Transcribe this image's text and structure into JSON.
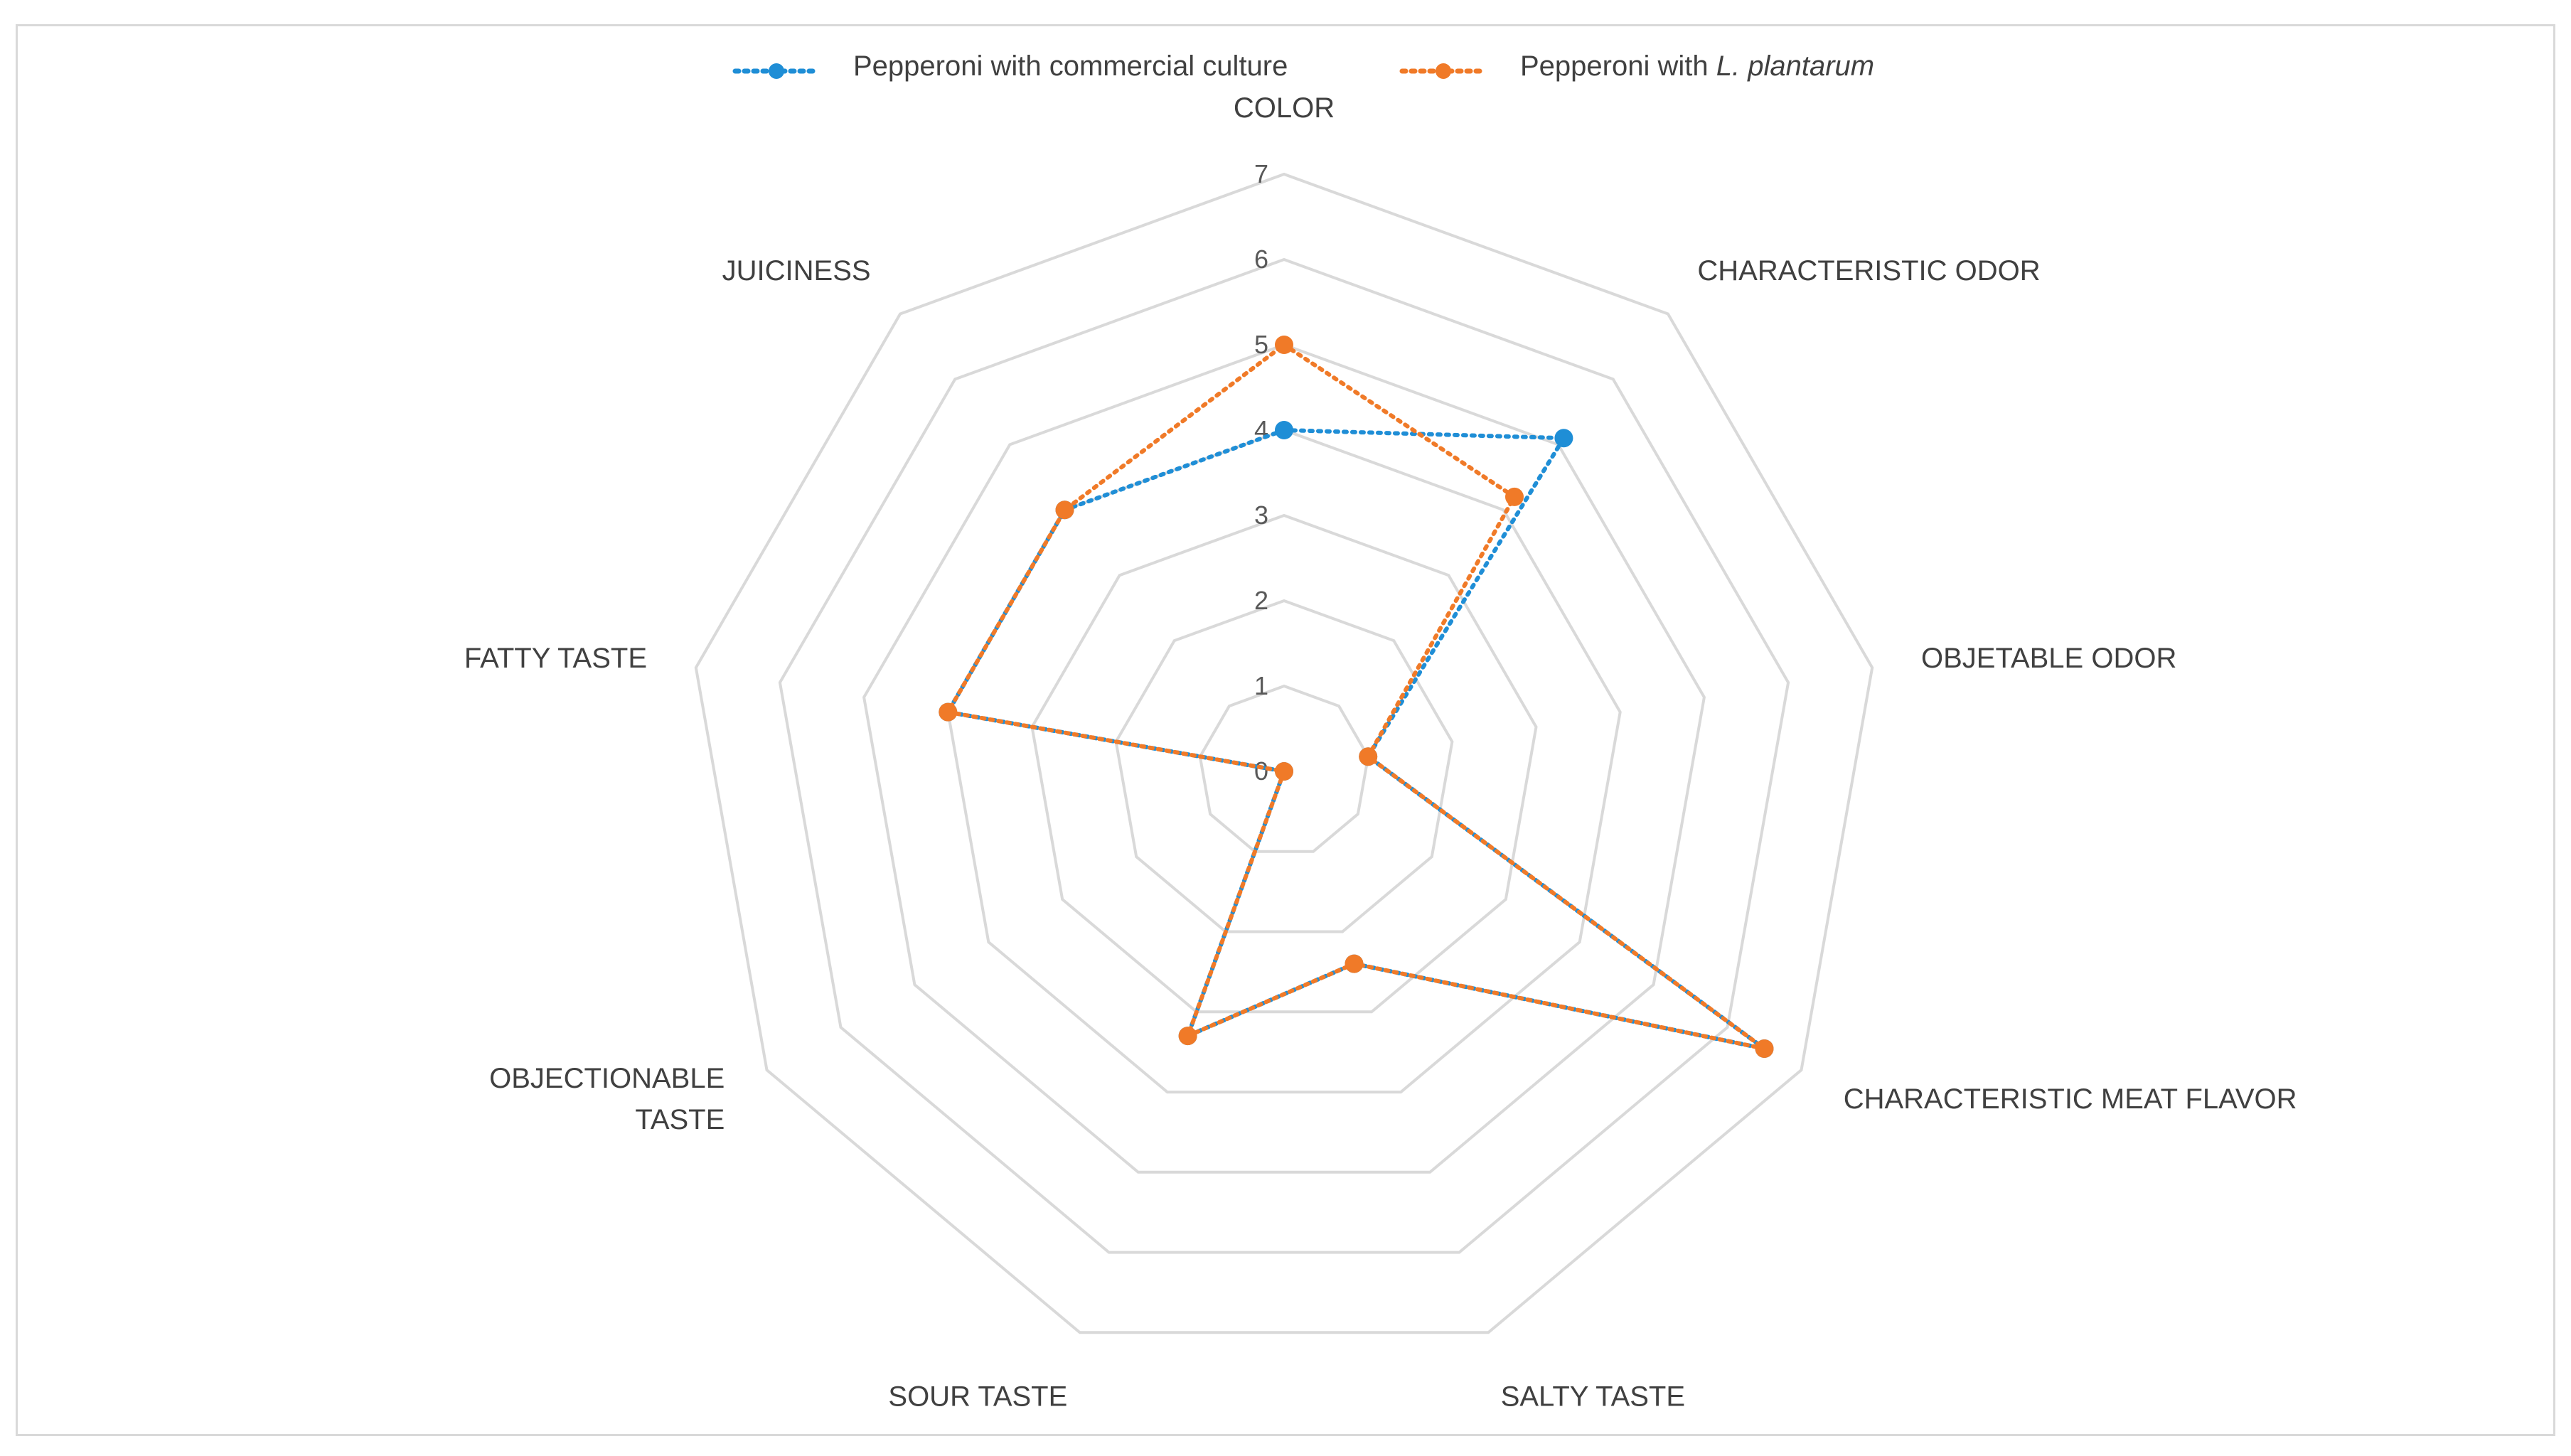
{
  "chart_data": {
    "type": "radar",
    "title": "",
    "categories": [
      "COLOR",
      "CHARACTERISTIC ODOR",
      "OBJETABLE ODOR",
      "CHARACTERISTIC MEAT FLAVOR",
      "SALTY TASTE",
      "SOUR TASTE",
      "OBJECTIONABLE TASTE",
      "FATTY TASTE",
      "JUICINESS"
    ],
    "category_lines": [
      [
        "COLOR"
      ],
      [
        "CHARACTERISTIC ODOR"
      ],
      [
        "OBJETABLE ODOR"
      ],
      [
        "CHARACTERISTIC MEAT FLAVOR"
      ],
      [
        "SALTY TASTE"
      ],
      [
        "SOUR TASTE"
      ],
      [
        "OBJECTIONABLE",
        "TASTE"
      ],
      [
        "FATTY TASTE"
      ],
      [
        "JUICINESS"
      ]
    ],
    "rlim": [
      0,
      7
    ],
    "ticks": [
      "0",
      "1",
      "2",
      "3",
      "4",
      "5",
      "6",
      "7"
    ],
    "grid": true,
    "legend_position": "top",
    "series": [
      {
        "name": "Pepperoni with commercial culture",
        "color": "#1f8ed6",
        "values": [
          4.0,
          5.1,
          1.0,
          6.5,
          2.4,
          3.3,
          0.0,
          4.0,
          4.0
        ]
      },
      {
        "name": "Pepperoni with L. plantarum",
        "legend_parts": [
          "Pepperoni with ",
          "L. plantarum"
        ],
        "color": "#f07a28",
        "values": [
          5.0,
          4.2,
          1.0,
          6.5,
          2.4,
          3.3,
          0.0,
          4.0,
          4.0
        ]
      }
    ]
  }
}
